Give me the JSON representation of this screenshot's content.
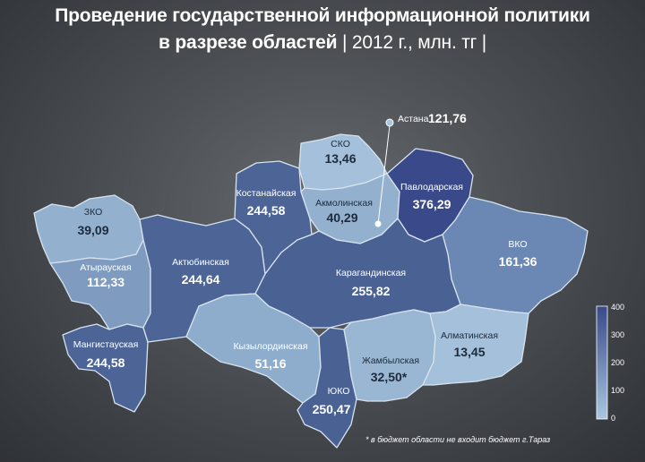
{
  "title": {
    "line1": "Проведение государственной информационной политики",
    "line2_bold": "в разрезе областей",
    "line2_thin": " | 2012 г., млн. тг |"
  },
  "regions": [
    {
      "key": "zko",
      "name": "ЗКО",
      "value": "39,09",
      "color": "#93b1cf"
    },
    {
      "key": "atyrau",
      "name": "Атырауская",
      "value": "112,33",
      "color": "#7f9cc0"
    },
    {
      "key": "mangystau",
      "name": "Мангистауская",
      "value": "244,58",
      "color": "#4d6596"
    },
    {
      "key": "aktobe",
      "name": "Актюбинская",
      "value": "244,64",
      "color": "#4d6596"
    },
    {
      "key": "kostanay",
      "name": "Костанайская",
      "value": "244,58",
      "color": "#4d6596"
    },
    {
      "key": "sko",
      "name": "СКО",
      "value": "13,46",
      "color": "#a4c0da"
    },
    {
      "key": "akmola",
      "name": "Акмолинская",
      "value": "40,29",
      "color": "#93b1cf"
    },
    {
      "key": "pavlodar",
      "name": "Павлодарская",
      "value": "376,29",
      "color": "#39498a"
    },
    {
      "key": "vko",
      "name": "ВКО",
      "value": "161,36",
      "color": "#6b87b4"
    },
    {
      "key": "karaganda",
      "name": "Карагандинская",
      "value": "255,82",
      "color": "#4a6193"
    },
    {
      "key": "kyzylorda",
      "name": "Кызылординская",
      "value": "51,16",
      "color": "#8eadcd"
    },
    {
      "key": "uko",
      "name": "ЮКО",
      "value": "250,47",
      "color": "#4a6193"
    },
    {
      "key": "zhambyl",
      "name": "Жамбылская",
      "value": "32,50*",
      "color": "#99b6d3"
    },
    {
      "key": "almaty",
      "name": "Алматинская",
      "value": "13,45",
      "color": "#a4c0da"
    }
  ],
  "astana": {
    "name": "Астана",
    "value": "121,76"
  },
  "legend": {
    "ticks": [
      "400",
      "300",
      "200",
      "100",
      "0"
    ],
    "color_top": "#39498a",
    "color_bottom": "#a9c6e0"
  },
  "footnote": "* в бюджет области не входит бюджет г.Тараз"
}
